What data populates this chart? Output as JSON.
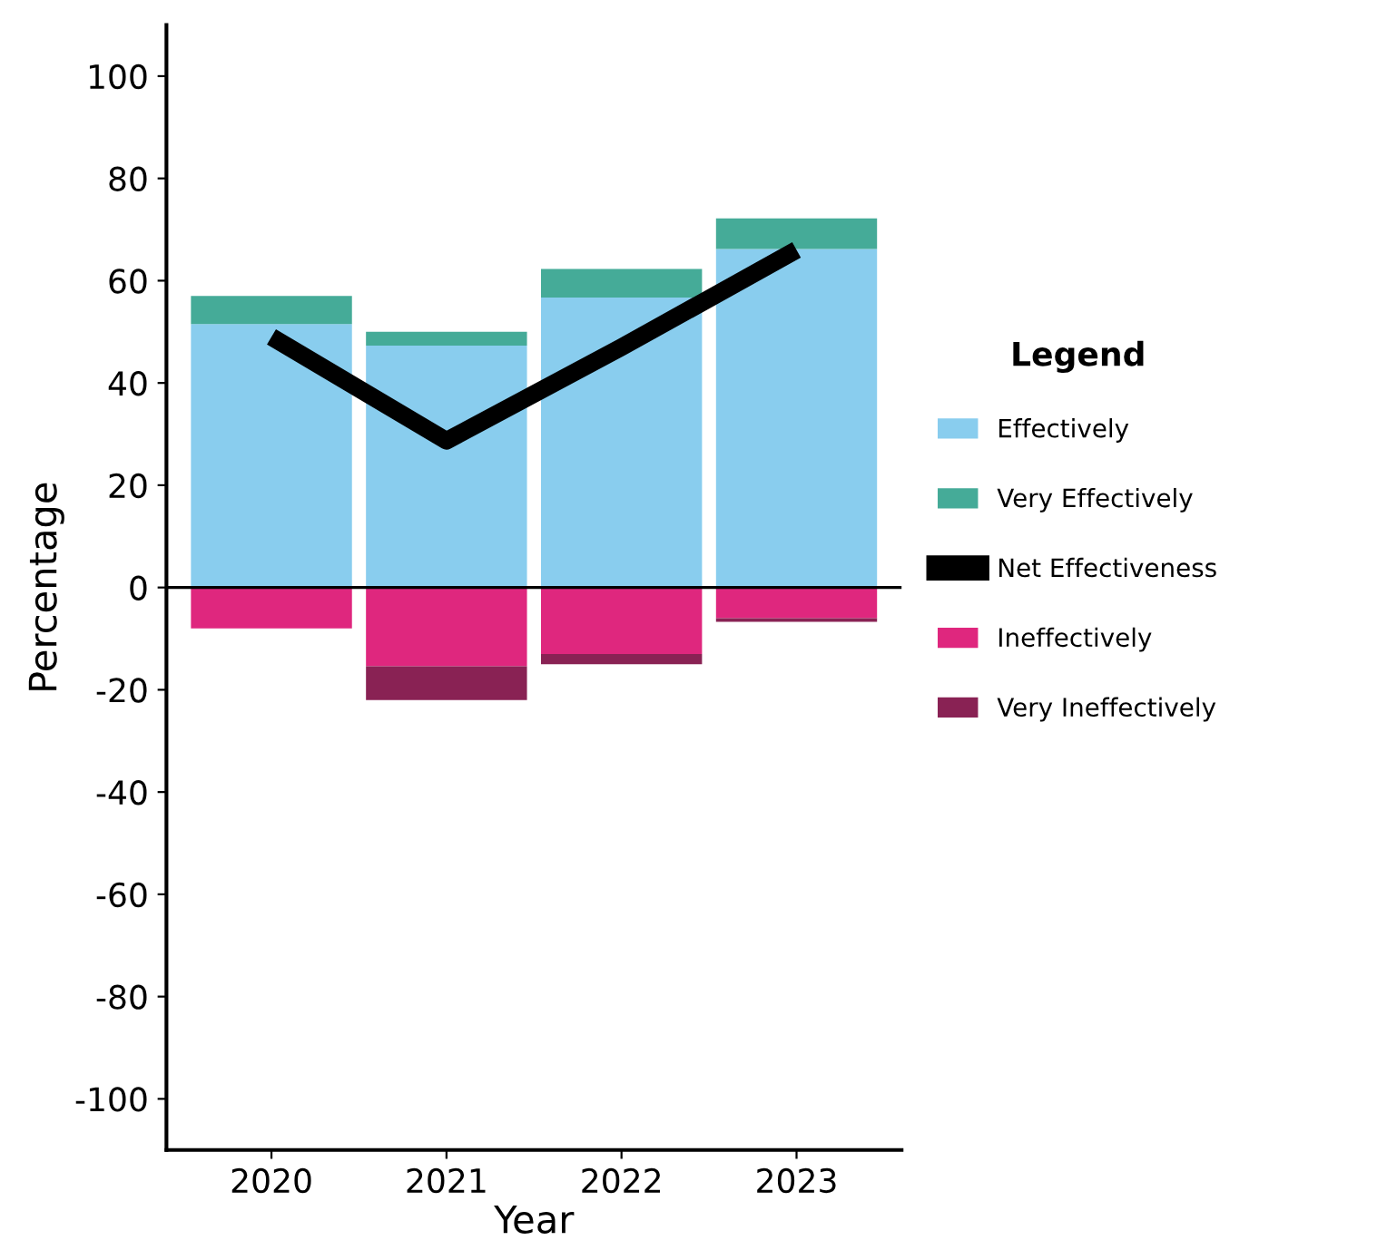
{
  "chart_data": {
    "type": "bar",
    "stacked": true,
    "xlabel": "Year",
    "ylabel": "Percentage",
    "legend_title": "Legend",
    "legend": "right",
    "categories": [
      "2020",
      "2021",
      "2022",
      "2023"
    ],
    "ylim": [
      -110,
      110
    ],
    "yticks": [
      -100,
      -80,
      -60,
      -40,
      -20,
      0,
      20,
      40,
      60,
      80,
      100
    ],
    "grid": false,
    "ref_lines": [
      {
        "axis": "y",
        "value": 0,
        "color": "#000000"
      }
    ],
    "series": [
      {
        "name": "Effectively",
        "color": "#89cdee",
        "values": [
          51.5,
          47.3,
          56.7,
          66.2
        ]
      },
      {
        "name": "Very Effectively",
        "color": "#45ab98",
        "values": [
          5.5,
          2.7,
          5.6,
          6
        ]
      },
      {
        "name": "Net Effectiveness",
        "type": "line",
        "color": "#000000",
        "values": [
          49,
          28.7,
          47,
          66
        ]
      },
      {
        "name": "Ineffectively",
        "color": "#df277e",
        "values": [
          -8,
          -15.4,
          -13,
          -6
        ]
      },
      {
        "name": "Very Ineffectively",
        "color": "#892254",
        "values": [
          0,
          -6.6,
          -2,
          -0.7
        ]
      }
    ]
  }
}
